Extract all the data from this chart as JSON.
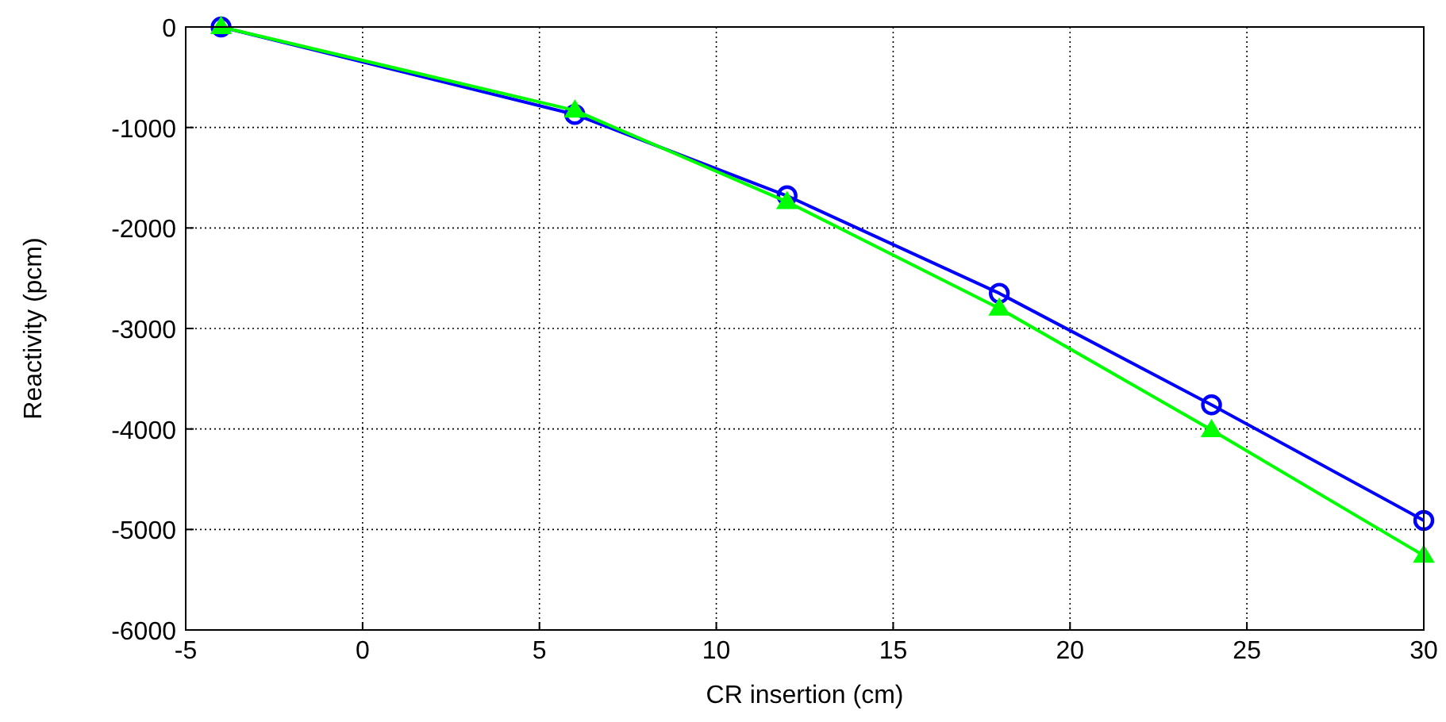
{
  "chart_data": {
    "type": "line",
    "xlabel": "CR insertion (cm)",
    "ylabel": "Reactivity (pcm)",
    "x": [
      -4,
      6,
      12,
      18,
      24,
      30
    ],
    "series": [
      {
        "color": "#0000ff",
        "marker": "circle",
        "values": [
          0,
          -870,
          -1680,
          -2650,
          -3760,
          -4910
        ]
      },
      {
        "color": "#00ff00",
        "marker": "triangle",
        "values": [
          0,
          -830,
          -1740,
          -2800,
          -4010,
          -5260
        ]
      }
    ],
    "xlim": [
      -5,
      30
    ],
    "xticks": [
      -5,
      0,
      5,
      10,
      15,
      20,
      25,
      30
    ],
    "ylim": [
      -6000,
      0
    ],
    "yticks": [
      -6000,
      -5000,
      -4000,
      -3000,
      -2000,
      -1000,
      0
    ],
    "grid": true,
    "line_style": "solid"
  }
}
